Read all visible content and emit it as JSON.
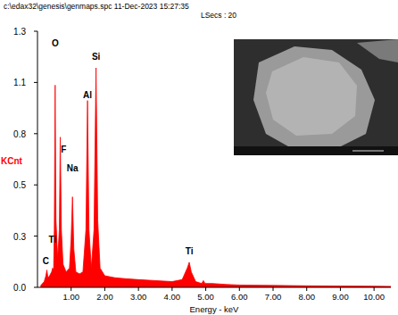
{
  "chart_data": {
    "type": "area",
    "title": "c:\\edax32\\genesis\\genmaps.spc 11-Dec-2023 15:27:35",
    "subtitle": "LSecs : 20",
    "x_label": "Energy - keV",
    "y_label": "KCnt",
    "color": "#ff0000",
    "x": [
      0.1,
      0.2,
      0.25,
      0.28,
      0.31,
      0.36,
      0.42,
      0.45,
      0.48,
      0.5,
      0.525,
      0.55,
      0.6,
      0.65,
      0.677,
      0.71,
      0.76,
      0.85,
      0.95,
      1.0,
      1.04,
      1.08,
      1.14,
      1.25,
      1.35,
      1.44,
      1.487,
      1.53,
      1.6,
      1.68,
      1.74,
      1.79,
      1.86,
      2.0,
      2.3,
      2.6,
      3.0,
      3.5,
      4.0,
      4.3,
      4.45,
      4.51,
      4.57,
      4.7,
      4.88,
      4.93,
      4.98,
      5.2,
      5.6,
      6.0,
      7.0,
      8.0,
      9.0,
      10.0,
      10.5
    ],
    "values": [
      0.01,
      0.03,
      0.06,
      0.09,
      0.05,
      0.06,
      0.08,
      0.1,
      0.09,
      0.3,
      1.05,
      0.35,
      0.15,
      0.3,
      0.78,
      0.3,
      0.12,
      0.08,
      0.1,
      0.25,
      0.47,
      0.2,
      0.08,
      0.07,
      0.08,
      0.3,
      0.97,
      0.3,
      0.1,
      0.3,
      1.14,
      0.35,
      0.1,
      0.06,
      0.05,
      0.045,
      0.04,
      0.035,
      0.03,
      0.04,
      0.1,
      0.13,
      0.08,
      0.03,
      0.02,
      0.035,
      0.02,
      0.02,
      0.015,
      0.012,
      0.01,
      0.008,
      0.007,
      0.006,
      0.005
    ],
    "xlim": [
      0,
      10.5
    ],
    "ylim": [
      0,
      1.33
    ],
    "xticks": [
      {
        "value": 1,
        "label": "1.00"
      },
      {
        "value": 2,
        "label": "2.00"
      },
      {
        "value": 3,
        "label": "3.00"
      },
      {
        "value": 4,
        "label": "4.00"
      },
      {
        "value": 5,
        "label": "5.00"
      },
      {
        "value": 6,
        "label": "6.00"
      },
      {
        "value": 7,
        "label": "7.00"
      },
      {
        "value": 8,
        "label": "8.00"
      },
      {
        "value": 9,
        "label": "9.00"
      },
      {
        "value": 10,
        "label": "10.00"
      }
    ],
    "yticks": [
      {
        "value": 0,
        "label": "0.0"
      },
      {
        "value": 0.266,
        "label": "0.3"
      },
      {
        "value": 0.532,
        "label": "0.5"
      },
      {
        "value": 0.798,
        "label": "0.8"
      },
      {
        "value": 1.064,
        "label": "1.1"
      },
      {
        "value": 1.33,
        "label": "1.3"
      }
    ],
    "annotations": [
      {
        "text": "C",
        "x": 0.25,
        "y": 0.14
      },
      {
        "text": "Ti",
        "x": 0.45,
        "y": 0.25
      },
      {
        "text": "O",
        "x": 0.525,
        "y": 1.27
      },
      {
        "text": "F",
        "x": 0.78,
        "y": 0.72
      },
      {
        "text": "Na",
        "x": 1.04,
        "y": 0.62
      },
      {
        "text": "Al",
        "x": 1.487,
        "y": 1.0
      },
      {
        "text": "Si",
        "x": 1.74,
        "y": 1.2
      },
      {
        "text": "Ti",
        "x": 4.51,
        "y": 0.19
      }
    ]
  }
}
